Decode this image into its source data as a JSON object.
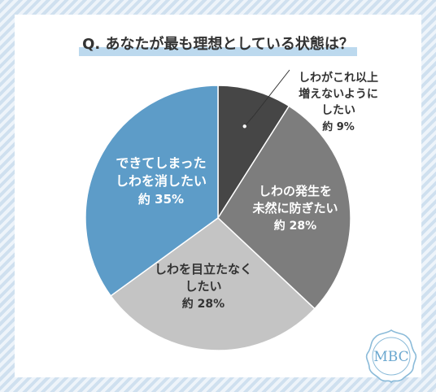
{
  "title": "Q. あなたが最も理想としている状態は？",
  "logo_text": "MBC",
  "colors": {
    "background": "#dce9f4",
    "title_highlight": "#bcd9ee",
    "slice_1": "#464646",
    "slice_2": "#7d7d7d",
    "slice_3": "#c4c4c4",
    "slice_4": "#5d9cc8"
  },
  "chart_data": {
    "type": "pie",
    "start": "top",
    "direction": "clockwise",
    "slices": [
      {
        "label_lines": [
          "しわがこれ以上",
          "増えないように",
          "したい"
        ],
        "value": 9,
        "value_label": "約 9%",
        "color": "#464646"
      },
      {
        "label_lines": [
          "しわの発生を",
          "未然に防ぎたい"
        ],
        "value": 28,
        "value_label": "約 28%",
        "color": "#7d7d7d"
      },
      {
        "label_lines": [
          "しわを目立たなく",
          "したい"
        ],
        "value": 28,
        "value_label": "約 28%",
        "color": "#c4c4c4"
      },
      {
        "label_lines": [
          "できてしまった",
          "しわを消したい"
        ],
        "value": 35,
        "value_label": "約 35%",
        "color": "#5d9cc8"
      }
    ]
  }
}
